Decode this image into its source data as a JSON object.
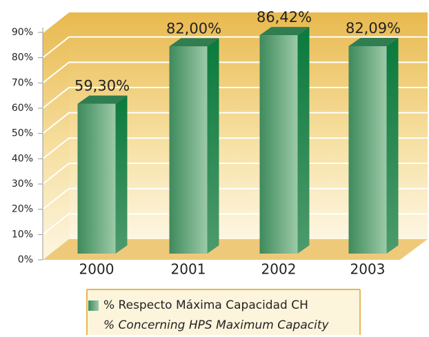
{
  "chart_data": {
    "type": "bar3d",
    "categories": [
      "2000",
      "2001",
      "2002",
      "2003"
    ],
    "series": [
      {
        "name": "% Respecto Máxima Capacidad CH",
        "color": "#4e9a6c",
        "values": [
          59.3,
          82.0,
          86.42,
          82.09
        ],
        "value_labels": [
          "59,30%",
          "82,00%",
          "86,42%",
          "82,09%"
        ]
      }
    ],
    "legend_translation": "% Concerning HPS Maximum Capacity",
    "ylim": [
      0,
      90
    ],
    "yticks": [
      {
        "value": 0,
        "label": "0%"
      },
      {
        "value": 10,
        "label": "10%"
      },
      {
        "value": 20,
        "label": "20%"
      },
      {
        "value": 30,
        "label": "30%"
      },
      {
        "value": 40,
        "label": "40%"
      },
      {
        "value": 50,
        "label": "50%"
      },
      {
        "value": 60,
        "label": "60%"
      },
      {
        "value": 70,
        "label": "70%"
      },
      {
        "value": 80,
        "label": "80%"
      },
      {
        "value": 90,
        "label": "90%"
      }
    ],
    "grid": true
  }
}
